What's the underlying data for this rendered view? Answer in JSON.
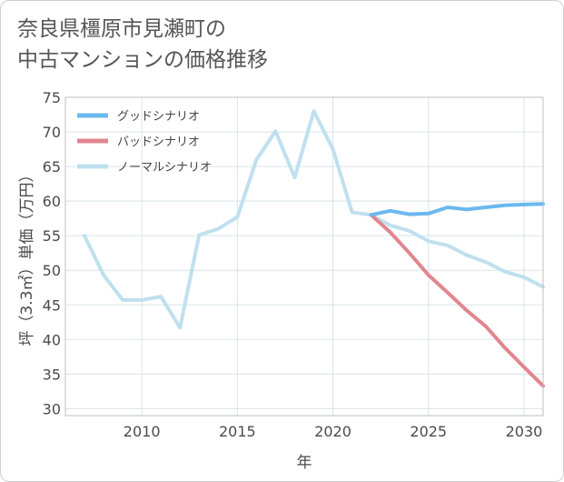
{
  "title_line1": "奈良県橿原市見瀬町の",
  "title_line2": "中古マンションの価格推移",
  "chart_data": {
    "type": "line",
    "xlabel": "年",
    "ylabel": "坪（3.3㎡）単価（万円）",
    "xlim": [
      2006,
      2031
    ],
    "ylim": [
      29,
      75
    ],
    "xticks": [
      2010,
      2015,
      2020,
      2025,
      2030
    ],
    "yticks": [
      30,
      35,
      40,
      45,
      50,
      55,
      60,
      65,
      70,
      75
    ],
    "grid": true,
    "legend_position": "top-left",
    "series": [
      {
        "name": "グッドシナリオ",
        "color": "#6bb8ee",
        "x": [
          2022,
          2023,
          2024,
          2025,
          2026,
          2027,
          2028,
          2029,
          2030,
          2031
        ],
        "values": [
          58.0,
          58.6,
          58.1,
          58.2,
          59.1,
          58.8,
          59.1,
          59.4,
          59.5,
          59.6
        ]
      },
      {
        "name": "バッドシナリオ",
        "color": "#e0868f",
        "x": [
          2022,
          2023,
          2024,
          2025,
          2026,
          2027,
          2028,
          2029,
          2030,
          2031
        ],
        "values": [
          58.0,
          55.5,
          52.5,
          49.3,
          46.8,
          44.2,
          41.9,
          38.8,
          36.0,
          33.3
        ]
      },
      {
        "name": "ノーマルシナリオ",
        "color": "#bfe0ee",
        "x": [
          2007,
          2008,
          2009,
          2010,
          2011,
          2012,
          2013,
          2014,
          2015,
          2016,
          2017,
          2018,
          2019,
          2020,
          2021,
          2022,
          2023,
          2024,
          2025,
          2026,
          2027,
          2028,
          2029,
          2030,
          2031
        ],
        "values": [
          55.0,
          49.3,
          45.7,
          45.7,
          46.2,
          41.7,
          55.1,
          56.0,
          57.7,
          66.0,
          70.1,
          63.4,
          73.0,
          67.5,
          58.4,
          58.0,
          56.5,
          55.7,
          54.2,
          53.6,
          52.2,
          51.2,
          49.8,
          49.0,
          47.6
        ]
      }
    ]
  }
}
